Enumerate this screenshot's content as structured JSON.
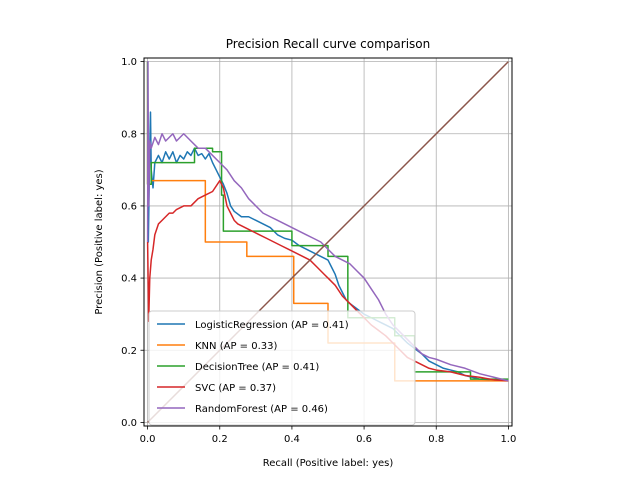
{
  "chart_data": {
    "type": "line",
    "title": "Precision Recall curve comparison",
    "xlabel": "Recall (Positive label: yes)",
    "ylabel": "Precision (Positive label: yes)",
    "xlim": [
      -0.01,
      1.01
    ],
    "ylim": [
      -0.01,
      1.01
    ],
    "xticks": [
      "0.0",
      "0.2",
      "0.4",
      "0.6",
      "0.8",
      "1.0"
    ],
    "yticks": [
      "0.0",
      "0.2",
      "0.4",
      "0.6",
      "0.8",
      "1.0"
    ],
    "grid": true,
    "legend_position": "lower-left",
    "series": [
      {
        "name": "LogisticRegression (AP = 0.41)",
        "color": "#1f77b4",
        "step": false,
        "points": [
          [
            0.0,
            1.0
          ],
          [
            0.002,
            0.5
          ],
          [
            0.005,
            0.7
          ],
          [
            0.008,
            0.86
          ],
          [
            0.01,
            0.7
          ],
          [
            0.015,
            0.65
          ],
          [
            0.02,
            0.72
          ],
          [
            0.03,
            0.74
          ],
          [
            0.04,
            0.72
          ],
          [
            0.05,
            0.75
          ],
          [
            0.06,
            0.73
          ],
          [
            0.07,
            0.75
          ],
          [
            0.08,
            0.72
          ],
          [
            0.09,
            0.74
          ],
          [
            0.1,
            0.73
          ],
          [
            0.11,
            0.75
          ],
          [
            0.12,
            0.74
          ],
          [
            0.13,
            0.76
          ],
          [
            0.14,
            0.74
          ],
          [
            0.15,
            0.745
          ],
          [
            0.16,
            0.73
          ],
          [
            0.17,
            0.745
          ],
          [
            0.18,
            0.72
          ],
          [
            0.19,
            0.7
          ],
          [
            0.2,
            0.68
          ],
          [
            0.21,
            0.66
          ],
          [
            0.22,
            0.635
          ],
          [
            0.23,
            0.6
          ],
          [
            0.24,
            0.585
          ],
          [
            0.26,
            0.57
          ],
          [
            0.28,
            0.57
          ],
          [
            0.3,
            0.56
          ],
          [
            0.32,
            0.55
          ],
          [
            0.34,
            0.54
          ],
          [
            0.36,
            0.52
          ],
          [
            0.38,
            0.51
          ],
          [
            0.4,
            0.505
          ],
          [
            0.42,
            0.49
          ],
          [
            0.44,
            0.48
          ],
          [
            0.46,
            0.47
          ],
          [
            0.48,
            0.46
          ],
          [
            0.5,
            0.45
          ],
          [
            0.51,
            0.43
          ],
          [
            0.52,
            0.41
          ],
          [
            0.53,
            0.38
          ],
          [
            0.54,
            0.36
          ],
          [
            0.55,
            0.34
          ],
          [
            0.56,
            0.33
          ],
          [
            0.58,
            0.315
          ],
          [
            0.6,
            0.3
          ],
          [
            0.62,
            0.29
          ],
          [
            0.64,
            0.28
          ],
          [
            0.66,
            0.27
          ],
          [
            0.68,
            0.26
          ],
          [
            0.7,
            0.24
          ],
          [
            0.72,
            0.22
          ],
          [
            0.74,
            0.205
          ],
          [
            0.76,
            0.19
          ],
          [
            0.78,
            0.17
          ],
          [
            0.8,
            0.16
          ],
          [
            0.82,
            0.15
          ],
          [
            0.84,
            0.145
          ],
          [
            0.86,
            0.14
          ],
          [
            0.88,
            0.13
          ],
          [
            0.9,
            0.125
          ],
          [
            0.92,
            0.12
          ],
          [
            0.95,
            0.118
          ],
          [
            0.98,
            0.116
          ],
          [
            1.0,
            0.115
          ]
        ]
      },
      {
        "name": "KNN (AP = 0.33)",
        "color": "#ff7f0e",
        "step": true,
        "points": [
          [
            0.0,
            1.0
          ],
          [
            0.0,
            0.66
          ],
          [
            0.01,
            0.66
          ],
          [
            0.01,
            0.67
          ],
          [
            0.16,
            0.67
          ],
          [
            0.16,
            0.5
          ],
          [
            0.275,
            0.5
          ],
          [
            0.275,
            0.46
          ],
          [
            0.405,
            0.46
          ],
          [
            0.405,
            0.33
          ],
          [
            0.5,
            0.33
          ],
          [
            0.5,
            0.22
          ],
          [
            0.685,
            0.22
          ],
          [
            0.685,
            0.115
          ],
          [
            1.0,
            0.115
          ]
        ]
      },
      {
        "name": "DecisionTree (AP = 0.41)",
        "color": "#2ca02c",
        "step": true,
        "points": [
          [
            0.0,
            1.0
          ],
          [
            0.0,
            0.66
          ],
          [
            0.01,
            0.66
          ],
          [
            0.01,
            0.72
          ],
          [
            0.13,
            0.72
          ],
          [
            0.13,
            0.76
          ],
          [
            0.18,
            0.76
          ],
          [
            0.18,
            0.75
          ],
          [
            0.205,
            0.75
          ],
          [
            0.205,
            0.63
          ],
          [
            0.21,
            0.63
          ],
          [
            0.21,
            0.53
          ],
          [
            0.4,
            0.53
          ],
          [
            0.4,
            0.49
          ],
          [
            0.5,
            0.49
          ],
          [
            0.5,
            0.46
          ],
          [
            0.555,
            0.46
          ],
          [
            0.555,
            0.29
          ],
          [
            0.685,
            0.29
          ],
          [
            0.685,
            0.24
          ],
          [
            0.74,
            0.24
          ],
          [
            0.74,
            0.14
          ],
          [
            0.895,
            0.14
          ],
          [
            0.895,
            0.12
          ],
          [
            1.0,
            0.12
          ]
        ]
      },
      {
        "name": "SVC (AP = 0.37)",
        "color": "#d62728",
        "step": false,
        "points": [
          [
            0.0,
            0.5
          ],
          [
            0.003,
            0.28
          ],
          [
            0.006,
            0.4
          ],
          [
            0.01,
            0.45
          ],
          [
            0.015,
            0.48
          ],
          [
            0.02,
            0.52
          ],
          [
            0.03,
            0.55
          ],
          [
            0.04,
            0.56
          ],
          [
            0.05,
            0.57
          ],
          [
            0.06,
            0.58
          ],
          [
            0.07,
            0.58
          ],
          [
            0.08,
            0.59
          ],
          [
            0.1,
            0.6
          ],
          [
            0.12,
            0.6
          ],
          [
            0.14,
            0.62
          ],
          [
            0.16,
            0.63
          ],
          [
            0.18,
            0.64
          ],
          [
            0.2,
            0.67
          ],
          [
            0.21,
            0.65
          ],
          [
            0.22,
            0.6
          ],
          [
            0.23,
            0.58
          ],
          [
            0.24,
            0.56
          ],
          [
            0.25,
            0.55
          ],
          [
            0.27,
            0.54
          ],
          [
            0.29,
            0.53
          ],
          [
            0.31,
            0.52
          ],
          [
            0.33,
            0.51
          ],
          [
            0.35,
            0.5
          ],
          [
            0.37,
            0.49
          ],
          [
            0.39,
            0.48
          ],
          [
            0.41,
            0.47
          ],
          [
            0.43,
            0.46
          ],
          [
            0.45,
            0.45
          ],
          [
            0.47,
            0.43
          ],
          [
            0.49,
            0.41
          ],
          [
            0.5,
            0.4
          ],
          [
            0.52,
            0.38
          ],
          [
            0.54,
            0.35
          ],
          [
            0.56,
            0.33
          ],
          [
            0.58,
            0.31
          ],
          [
            0.6,
            0.29
          ],
          [
            0.62,
            0.27
          ],
          [
            0.64,
            0.255
          ],
          [
            0.66,
            0.24
          ],
          [
            0.68,
            0.22
          ],
          [
            0.7,
            0.2
          ],
          [
            0.72,
            0.18
          ],
          [
            0.74,
            0.17
          ],
          [
            0.76,
            0.16
          ],
          [
            0.78,
            0.15
          ],
          [
            0.8,
            0.145
          ],
          [
            0.84,
            0.14
          ],
          [
            0.88,
            0.13
          ],
          [
            0.92,
            0.125
          ],
          [
            0.96,
            0.118
          ],
          [
            1.0,
            0.115
          ]
        ]
      },
      {
        "name": "RandomForest (AP = 0.46)",
        "color": "#9467bd",
        "step": false,
        "points": [
          [
            0.0,
            0.5
          ],
          [
            0.001,
            1.0
          ],
          [
            0.003,
            0.6
          ],
          [
            0.006,
            0.78
          ],
          [
            0.01,
            0.76
          ],
          [
            0.02,
            0.79
          ],
          [
            0.03,
            0.77
          ],
          [
            0.04,
            0.8
          ],
          [
            0.05,
            0.78
          ],
          [
            0.06,
            0.79
          ],
          [
            0.07,
            0.8
          ],
          [
            0.08,
            0.78
          ],
          [
            0.09,
            0.79
          ],
          [
            0.1,
            0.8
          ],
          [
            0.12,
            0.78
          ],
          [
            0.14,
            0.76
          ],
          [
            0.16,
            0.76
          ],
          [
            0.18,
            0.74
          ],
          [
            0.2,
            0.72
          ],
          [
            0.22,
            0.7
          ],
          [
            0.24,
            0.67
          ],
          [
            0.26,
            0.65
          ],
          [
            0.28,
            0.62
          ],
          [
            0.3,
            0.6
          ],
          [
            0.32,
            0.58
          ],
          [
            0.34,
            0.57
          ],
          [
            0.36,
            0.56
          ],
          [
            0.38,
            0.55
          ],
          [
            0.4,
            0.54
          ],
          [
            0.42,
            0.53
          ],
          [
            0.44,
            0.52
          ],
          [
            0.46,
            0.51
          ],
          [
            0.48,
            0.5
          ],
          [
            0.5,
            0.48
          ],
          [
            0.52,
            0.46
          ],
          [
            0.54,
            0.45
          ],
          [
            0.56,
            0.44
          ],
          [
            0.58,
            0.42
          ],
          [
            0.6,
            0.4
          ],
          [
            0.62,
            0.37
          ],
          [
            0.64,
            0.34
          ],
          [
            0.66,
            0.3
          ],
          [
            0.68,
            0.27
          ],
          [
            0.7,
            0.25
          ],
          [
            0.72,
            0.23
          ],
          [
            0.74,
            0.21
          ],
          [
            0.76,
            0.19
          ],
          [
            0.78,
            0.18
          ],
          [
            0.8,
            0.175
          ],
          [
            0.84,
            0.16
          ],
          [
            0.88,
            0.15
          ],
          [
            0.92,
            0.135
          ],
          [
            0.96,
            0.125
          ],
          [
            1.0,
            0.115
          ]
        ]
      },
      {
        "name": "",
        "color": "#8c564b",
        "step": false,
        "points": [
          [
            0.0,
            0.0
          ],
          [
            1.0,
            1.0
          ]
        ]
      }
    ]
  }
}
